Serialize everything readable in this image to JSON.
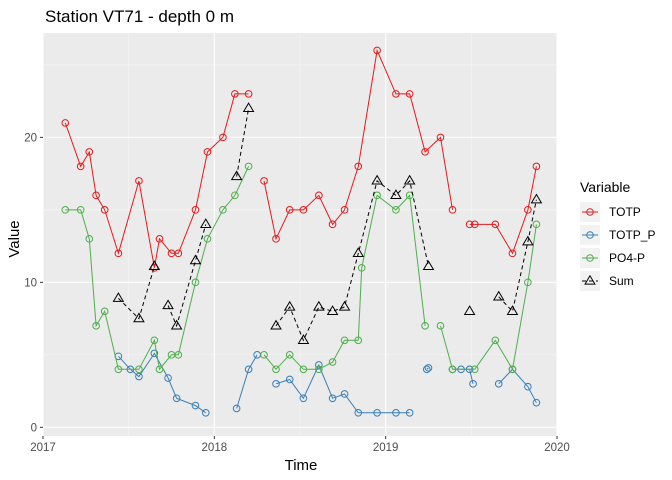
{
  "chart_data": {
    "type": "line",
    "title": "Station VT71 - depth 0 m",
    "xlabel": "Time",
    "ylabel": "Value",
    "xlim": [
      2017.0,
      2020.0
    ],
    "ylim": [
      -0.6,
      27.2
    ],
    "x_ticks": [
      {
        "value": 2017,
        "label": "2017"
      },
      {
        "value": 2018,
        "label": "2018"
      },
      {
        "value": 2019,
        "label": "2019"
      },
      {
        "value": 2020,
        "label": "2020"
      }
    ],
    "y_ticks": [
      {
        "value": 0,
        "label": "0"
      },
      {
        "value": 10,
        "label": "10"
      },
      {
        "value": 20,
        "label": "20"
      }
    ],
    "grid": true,
    "legend": {
      "title": "Variable",
      "position": "right"
    },
    "series": [
      {
        "name": "TOTP",
        "color": "#E41A1C",
        "line": "solid",
        "marker": "circle",
        "segments": [
          [
            [
              2017.13,
              21
            ],
            [
              2017.22,
              18
            ],
            [
              2017.27,
              19
            ],
            [
              2017.31,
              16
            ],
            [
              2017.36,
              15
            ],
            [
              2017.44,
              12
            ],
            [
              2017.56,
              17
            ],
            [
              2017.65,
              11
            ],
            [
              2017.68,
              13
            ],
            [
              2017.75,
              12
            ],
            [
              2017.79,
              12
            ],
            [
              2017.89,
              15
            ],
            [
              2017.96,
              19
            ],
            [
              2018.05,
              20
            ],
            [
              2018.12,
              23
            ],
            [
              2018.2,
              23
            ]
          ],
          [
            [
              2018.29,
              17
            ],
            [
              2018.36,
              13
            ],
            [
              2018.44,
              15
            ],
            [
              2018.52,
              15
            ],
            [
              2018.61,
              16
            ],
            [
              2018.69,
              14
            ],
            [
              2018.76,
              15
            ],
            [
              2018.84,
              18
            ],
            [
              2018.95,
              26
            ],
            [
              2019.06,
              23
            ],
            [
              2019.14,
              23
            ],
            [
              2019.23,
              19
            ],
            [
              2019.32,
              20
            ],
            [
              2019.39,
              15
            ]
          ],
          [
            [
              2019.49,
              14
            ],
            [
              2019.52,
              14
            ],
            [
              2019.64,
              14
            ],
            [
              2019.74,
              12
            ],
            [
              2019.83,
              15
            ],
            [
              2019.88,
              18
            ]
          ]
        ]
      },
      {
        "name": "TOTP_P",
        "color": "#377EB8",
        "line": "solid",
        "marker": "circle",
        "segments": [
          [
            [
              2017.44,
              4.9
            ],
            [
              2017.51,
              4
            ],
            [
              2017.56,
              3.5
            ],
            [
              2017.65,
              5.1
            ],
            [
              2017.73,
              3.4
            ],
            [
              2017.78,
              2
            ],
            [
              2017.89,
              1.5
            ],
            [
              2017.95,
              1
            ]
          ],
          [
            [
              2018.13,
              1.3
            ],
            [
              2018.2,
              4
            ],
            [
              2018.25,
              5
            ]
          ],
          [
            [
              2018.36,
              3
            ],
            [
              2018.44,
              3.3
            ],
            [
              2018.52,
              2
            ],
            [
              2018.61,
              4.3
            ],
            [
              2018.69,
              2
            ],
            [
              2018.76,
              2.3
            ],
            [
              2018.84,
              1
            ],
            [
              2018.95,
              1
            ],
            [
              2019.06,
              1
            ],
            [
              2019.14,
              1
            ]
          ],
          [
            [
              2019.24,
              4
            ],
            [
              2019.25,
              4.1
            ]
          ],
          [
            [
              2019.39,
              4
            ],
            [
              2019.44,
              4
            ],
            [
              2019.49,
              4
            ],
            [
              2019.51,
              3
            ]
          ],
          [
            [
              2019.66,
              3
            ],
            [
              2019.74,
              4
            ],
            [
              2019.83,
              2.8
            ],
            [
              2019.88,
              1.7
            ]
          ]
        ]
      },
      {
        "name": "PO4-P",
        "color": "#4DAF4A",
        "line": "solid",
        "marker": "circle",
        "segments": [
          [
            [
              2017.13,
              15
            ],
            [
              2017.22,
              15
            ],
            [
              2017.27,
              13
            ],
            [
              2017.31,
              7
            ],
            [
              2017.36,
              8
            ],
            [
              2017.44,
              4
            ],
            [
              2017.56,
              4
            ],
            [
              2017.65,
              6
            ],
            [
              2017.68,
              4
            ],
            [
              2017.75,
              5
            ],
            [
              2017.79,
              5
            ],
            [
              2017.89,
              10
            ],
            [
              2017.96,
              13
            ],
            [
              2018.05,
              15
            ],
            [
              2018.12,
              16
            ],
            [
              2018.2,
              18
            ]
          ],
          [
            [
              2018.29,
              5
            ],
            [
              2018.36,
              4
            ],
            [
              2018.44,
              5
            ],
            [
              2018.52,
              4
            ],
            [
              2018.61,
              4
            ],
            [
              2018.69,
              4.5
            ],
            [
              2018.76,
              6
            ],
            [
              2018.84,
              6
            ],
            [
              2018.86,
              11
            ],
            [
              2018.95,
              16
            ],
            [
              2019.06,
              15
            ],
            [
              2019.14,
              16
            ],
            [
              2019.23,
              7
            ]
          ],
          [
            [
              2019.32,
              7
            ],
            [
              2019.39,
              4
            ],
            [
              2019.52,
              4
            ],
            [
              2019.64,
              6
            ],
            [
              2019.74,
              4
            ],
            [
              2019.83,
              10
            ],
            [
              2019.88,
              14
            ]
          ]
        ]
      },
      {
        "name": "Sum",
        "color": "#000000",
        "line": "dashed",
        "marker": "triangle",
        "segments": [
          [
            [
              2017.44,
              8.9
            ],
            [
              2017.56,
              7.5
            ],
            [
              2017.65,
              11.1
            ]
          ],
          [
            [
              2017.73,
              8.4
            ],
            [
              2017.78,
              7
            ],
            [
              2017.89,
              11.5
            ],
            [
              2017.95,
              14
            ]
          ],
          [
            [
              2018.13,
              17.3
            ],
            [
              2018.2,
              22
            ]
          ],
          [
            [
              2018.36,
              7
            ],
            [
              2018.44,
              8.3
            ],
            [
              2018.52,
              6
            ],
            [
              2018.61,
              8.3
            ],
            [
              2018.69,
              8
            ],
            [
              2018.76,
              8.3
            ],
            [
              2018.84,
              12
            ],
            [
              2018.95,
              17
            ],
            [
              2019.06,
              16
            ],
            [
              2019.14,
              17
            ],
            [
              2019.25,
              11.1
            ]
          ],
          [
            [
              2019.49,
              8
            ]
          ],
          [
            [
              2019.66,
              9
            ],
            [
              2019.74,
              8
            ],
            [
              2019.83,
              12.8
            ],
            [
              2019.88,
              15.7
            ]
          ]
        ]
      }
    ]
  }
}
